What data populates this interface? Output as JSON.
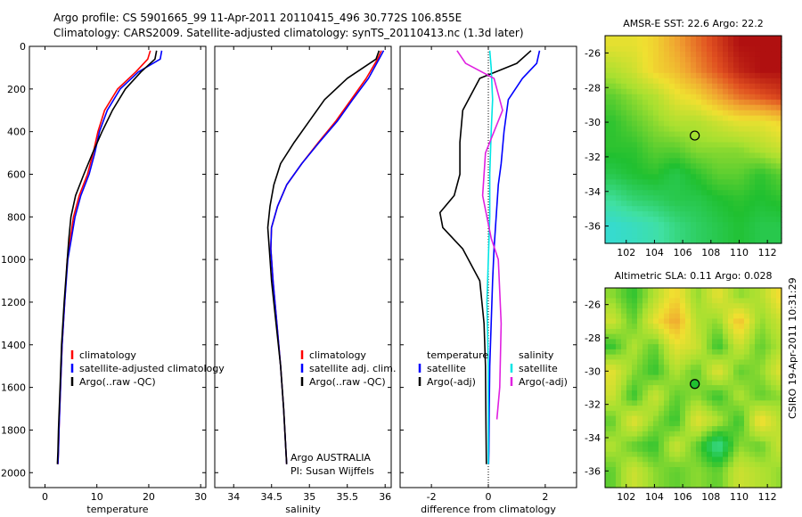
{
  "header": {
    "line1": "Argo profile: CS 5901665_99 11-Apr-2011 20110415_496 30.772S 106.855E",
    "line2": "Climatology: CARS2009. Satellite-adjusted climatology: synTS_20110413.nc (1.3d later)"
  },
  "side_label": "CSIRO 19-Apr-2011 10:31:29",
  "colors": {
    "red": "#ff0000",
    "blue": "#0000ff",
    "black": "#000000",
    "cyan": "#00e5e5",
    "magenta": "#e020e0"
  },
  "chart_data": [
    {
      "id": "temperature",
      "type": "line",
      "xlabel": "temperature",
      "xlim": [
        -3,
        31
      ],
      "ylim": [
        0,
        2070
      ],
      "xticks": [
        0,
        10,
        20,
        30
      ],
      "yticks": [
        0,
        200,
        400,
        600,
        800,
        1000,
        1200,
        1400,
        1600,
        1800,
        2000
      ],
      "y_inverted": true,
      "legend": {
        "placement": "lower-right",
        "entries": [
          {
            "label": "climatology",
            "color": "#ff0000"
          },
          {
            "label": "satellite-adjusted climatology",
            "color": "#0000ff"
          },
          {
            "label": "Argo(..raw -QC)",
            "color": "#000000"
          }
        ]
      },
      "series": [
        {
          "color": "#ff0000",
          "x": [
            20.3,
            19.8,
            17.5,
            14.0,
            11.5,
            10.2,
            9.3,
            8.2,
            6.6,
            5.5,
            4.9,
            4.3,
            3.8,
            3.3,
            3.0,
            2.7,
            2.6,
            2.5
          ],
          "y": [
            20,
            60,
            120,
            200,
            300,
            400,
            500,
            600,
            700,
            800,
            900,
            1000,
            1200,
            1400,
            1600,
            1800,
            1900,
            1960
          ]
        },
        {
          "color": "#0000ff",
          "x": [
            22.5,
            22.2,
            18.0,
            14.5,
            12.0,
            10.5,
            9.6,
            8.5,
            6.9,
            5.8,
            5.1,
            4.4,
            3.8,
            3.3,
            3.0,
            2.7,
            2.6,
            2.5
          ],
          "y": [
            20,
            60,
            120,
            200,
            300,
            400,
            500,
            600,
            700,
            800,
            900,
            1000,
            1200,
            1400,
            1600,
            1800,
            1900,
            1960
          ]
        },
        {
          "color": "#000000",
          "x": [
            21.5,
            21.2,
            18.5,
            15.5,
            13.0,
            11.0,
            9.2,
            7.5,
            5.9,
            5.0,
            4.6,
            4.3,
            3.7,
            3.2,
            2.9,
            2.6,
            2.5,
            2.4
          ],
          "y": [
            20,
            60,
            120,
            200,
            300,
            400,
            500,
            600,
            700,
            800,
            900,
            1000,
            1200,
            1400,
            1600,
            1800,
            1900,
            1960
          ]
        }
      ]
    },
    {
      "id": "salinity",
      "type": "line",
      "xlabel": "salinity",
      "xlim": [
        33.75,
        36.08
      ],
      "ylim": [
        0,
        2070
      ],
      "xticks": [
        34,
        34.5,
        35,
        35.5,
        36
      ],
      "yticks": [
        0,
        200,
        400,
        600,
        800,
        1000,
        1200,
        1400,
        1600,
        1800,
        2000
      ],
      "y_inverted": true,
      "legend": {
        "placement": "lower-right",
        "entries": [
          {
            "label": "climatology",
            "color": "#ff0000"
          },
          {
            "label": "satellite adj. clim.",
            "color": "#0000ff"
          },
          {
            "label": "Argo(..raw -QC)",
            "color": "#000000"
          }
        ]
      },
      "annotation": [
        "Argo AUSTRALIA",
        "PI: Susan Wijffels"
      ],
      "series": [
        {
          "color": "#ff0000",
          "x": [
            35.95,
            35.9,
            35.75,
            35.55,
            35.35,
            35.12,
            34.9,
            34.7,
            34.58,
            34.5,
            34.49,
            34.52,
            34.57,
            34.62,
            34.66,
            34.69,
            34.7
          ],
          "y": [
            20,
            60,
            150,
            250,
            350,
            450,
            550,
            650,
            750,
            850,
            950,
            1100,
            1300,
            1500,
            1700,
            1900,
            1960
          ]
        },
        {
          "color": "#0000ff",
          "x": [
            35.98,
            35.92,
            35.78,
            35.57,
            35.37,
            35.13,
            34.9,
            34.7,
            34.58,
            34.5,
            34.49,
            34.52,
            34.57,
            34.62,
            34.66,
            34.69,
            34.7
          ],
          "y": [
            20,
            60,
            150,
            250,
            350,
            450,
            550,
            650,
            750,
            850,
            950,
            1100,
            1300,
            1500,
            1700,
            1900,
            1960
          ]
        },
        {
          "color": "#000000",
          "x": [
            35.92,
            35.88,
            35.5,
            35.2,
            35.0,
            34.8,
            34.62,
            34.53,
            34.48,
            34.45,
            34.47,
            34.5,
            34.56,
            34.62,
            34.66,
            34.69,
            34.7
          ],
          "y": [
            20,
            60,
            150,
            250,
            350,
            450,
            550,
            650,
            750,
            850,
            950,
            1100,
            1300,
            1500,
            1700,
            1900,
            1960
          ]
        }
      ]
    },
    {
      "id": "difference",
      "type": "line",
      "xlabel": "difference from climatology",
      "xlim": [
        -3.1,
        3.1
      ],
      "ylim": [
        0,
        2070
      ],
      "xticks": [
        -2,
        0,
        2
      ],
      "yticks": [
        0,
        200,
        400,
        600,
        800,
        1000,
        1200,
        1400,
        1600,
        1800,
        2000
      ],
      "y_inverted": true,
      "zero_line": true,
      "legend": {
        "placement": "lower-center",
        "headers": [
          "temperature",
          "salinity"
        ],
        "entries": [
          {
            "label": "satellite",
            "color": "#0000ff",
            "column": 0
          },
          {
            "label": "Argo(-adj)",
            "color": "#000000",
            "column": 0
          },
          {
            "label": "satellite",
            "color": "#00e5e5",
            "column": 1
          },
          {
            "label": "Argo(-adj)",
            "color": "#e020e0",
            "column": 1
          }
        ]
      },
      "series": [
        {
          "color": "#0000ff",
          "x": [
            1.8,
            1.7,
            1.2,
            0.7,
            0.55,
            0.45,
            0.35,
            0.3,
            0.25,
            0.2,
            0.15,
            0.1,
            0.05,
            0.03,
            0.02,
            0.01
          ],
          "y": [
            20,
            80,
            150,
            250,
            400,
            550,
            650,
            750,
            850,
            950,
            1100,
            1300,
            1500,
            1700,
            1900,
            1960
          ]
        },
        {
          "color": "#000000",
          "x": [
            1.5,
            1.0,
            -0.3,
            -0.9,
            -1.0,
            -1.0,
            -1.2,
            -1.7,
            -1.6,
            -0.9,
            -0.3,
            -0.15,
            -0.1,
            -0.08,
            -0.07
          ],
          "y": [
            20,
            80,
            150,
            300,
            450,
            600,
            700,
            780,
            850,
            950,
            1100,
            1300,
            1500,
            1800,
            1960
          ]
        },
        {
          "color": "#00e5e5",
          "x": [
            0.05,
            0.1,
            0.15,
            0.1,
            0.05,
            0.05,
            0.0,
            -0.05,
            0.0,
            0.0,
            0.0
          ],
          "y": [
            20,
            100,
            250,
            400,
            600,
            800,
            1000,
            1200,
            1500,
            1800,
            1960
          ]
        },
        {
          "color": "#e020e0",
          "x": [
            -1.1,
            -0.8,
            0.2,
            0.5,
            -0.1,
            -0.2,
            0.1,
            0.35,
            0.45,
            0.4,
            0.3
          ],
          "y": [
            20,
            80,
            150,
            300,
            500,
            700,
            900,
            1000,
            1300,
            1600,
            1750
          ]
        }
      ]
    },
    {
      "id": "sst_map",
      "type": "heatmap",
      "title": "AMSR-E SST: 22.6 Argo: 22.2",
      "xlim": [
        100.5,
        113
      ],
      "ylim": [
        -37,
        -25
      ],
      "xticks": [
        102,
        104,
        106,
        108,
        110,
        112
      ],
      "yticks": [
        -26,
        -28,
        -30,
        -32,
        -34,
        -36
      ],
      "marker": {
        "lon": 106.855,
        "lat": -30.772
      },
      "colorscale": [
        "#30d8e8",
        "#40e0a0",
        "#20c030",
        "#a8e030",
        "#f0e030",
        "#f0a030",
        "#e05020",
        "#b01010"
      ],
      "grid_lat": [
        -25.5,
        -27,
        -28.5,
        -30,
        -31.5,
        -33,
        -34.5,
        -36
      ],
      "grid_lon": [
        101,
        102.5,
        104,
        105.5,
        107,
        108.5,
        110,
        111.5,
        113
      ],
      "values": [
        [
          0.55,
          0.55,
          0.6,
          0.7,
          0.8,
          0.9,
          1.0,
          1.0,
          1.0
        ],
        [
          0.45,
          0.5,
          0.6,
          0.65,
          0.75,
          0.85,
          0.95,
          1.0,
          1.0
        ],
        [
          0.35,
          0.4,
          0.45,
          0.55,
          0.6,
          0.7,
          0.8,
          0.85,
          0.9
        ],
        [
          0.3,
          0.35,
          0.4,
          0.45,
          0.45,
          0.5,
          0.55,
          0.55,
          0.6
        ],
        [
          0.3,
          0.3,
          0.35,
          0.35,
          0.4,
          0.4,
          0.4,
          0.45,
          0.5
        ],
        [
          0.25,
          0.28,
          0.3,
          0.25,
          0.3,
          0.35,
          0.35,
          0.3,
          0.35
        ],
        [
          0.15,
          0.2,
          0.22,
          0.25,
          0.25,
          0.28,
          0.3,
          0.28,
          0.3
        ],
        [
          0.05,
          0.08,
          0.12,
          0.18,
          0.22,
          0.25,
          0.28,
          0.25,
          0.25
        ]
      ]
    },
    {
      "id": "sla_map",
      "type": "heatmap",
      "title": "Altimetric SLA: 0.11 Argo: 0.028",
      "xlim": [
        100.5,
        113
      ],
      "ylim": [
        -37,
        -25
      ],
      "xticks": [
        102,
        104,
        106,
        108,
        110,
        112
      ],
      "yticks": [
        -26,
        -28,
        -30,
        -32,
        -34,
        -36
      ],
      "marker": {
        "lon": 106.855,
        "lat": -30.772
      },
      "colorscale": [
        "#30d8e8",
        "#40e0a0",
        "#20c030",
        "#a8e030",
        "#f0e030",
        "#f0a030",
        "#e05020",
        "#b01010"
      ],
      "grid_lat": [
        -25.5,
        -27,
        -28.5,
        -30,
        -31.5,
        -33,
        -34.5,
        -36
      ],
      "grid_lon": [
        101,
        102.5,
        104,
        105.5,
        107,
        108.5,
        110,
        111.5,
        113
      ],
      "values": [
        [
          0.4,
          0.3,
          0.45,
          0.6,
          0.4,
          0.55,
          0.4,
          0.45,
          0.6
        ],
        [
          0.5,
          0.35,
          0.55,
          0.7,
          0.45,
          0.4,
          0.65,
          0.4,
          0.5
        ],
        [
          0.3,
          0.45,
          0.35,
          0.55,
          0.5,
          0.3,
          0.5,
          0.35,
          0.45
        ],
        [
          0.55,
          0.4,
          0.3,
          0.45,
          0.35,
          0.55,
          0.35,
          0.4,
          0.55
        ],
        [
          0.5,
          0.3,
          0.5,
          0.35,
          0.4,
          0.3,
          0.45,
          0.35,
          0.4
        ],
        [
          0.35,
          0.55,
          0.4,
          0.3,
          0.55,
          0.45,
          0.3,
          0.6,
          0.45
        ],
        [
          0.45,
          0.35,
          0.3,
          0.5,
          0.35,
          0.15,
          0.4,
          0.35,
          0.5
        ],
        [
          0.35,
          0.5,
          0.4,
          0.35,
          0.4,
          0.35,
          0.5,
          0.45,
          0.4
        ]
      ]
    }
  ]
}
